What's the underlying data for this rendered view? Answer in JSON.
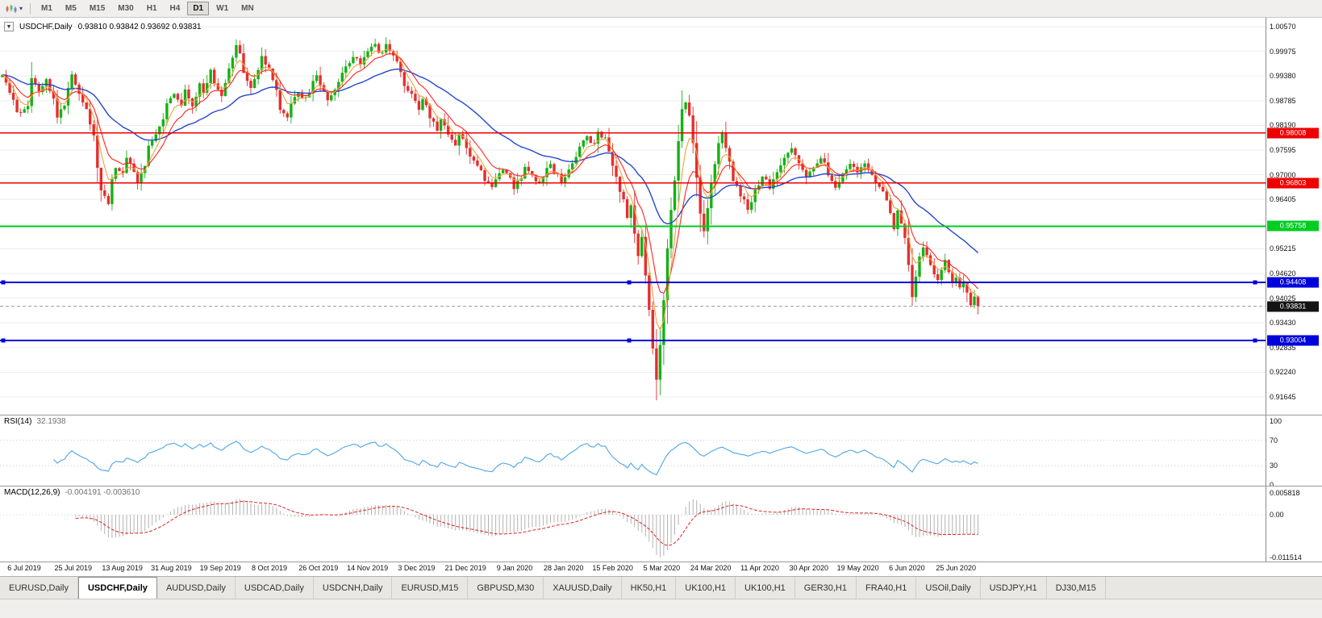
{
  "toolbar": {
    "timeframes": [
      "M1",
      "M5",
      "M15",
      "M30",
      "H1",
      "H4",
      "D1",
      "W1",
      "MN"
    ],
    "active_timeframe": "D1",
    "chart_menu_arrow": "▾"
  },
  "chart": {
    "title_symbol": "USDCHF,Daily",
    "title_ohlc": "0.93810 0.93842 0.93692 0.93831",
    "menu_arrow": "▼"
  },
  "indicators": {
    "rsi": {
      "label": "RSI(14)",
      "value": "32.1938"
    },
    "macd": {
      "label": "MACD(12,26,9)",
      "value": "-0.004191 -0.003610"
    }
  },
  "tabs": [
    {
      "label": "EURUSD,Daily",
      "active": false
    },
    {
      "label": "USDCHF,Daily",
      "active": true
    },
    {
      "label": "AUDUSD,Daily",
      "active": false
    },
    {
      "label": "USDCAD,Daily",
      "active": false
    },
    {
      "label": "USDCNH,Daily",
      "active": false
    },
    {
      "label": "EURUSD,M15",
      "active": false
    },
    {
      "label": "GBPUSD,M30",
      "active": false
    },
    {
      "label": "XAUUSD,Daily",
      "active": false
    },
    {
      "label": "HK50,H1",
      "active": false
    },
    {
      "label": "UK100,H1",
      "active": false
    },
    {
      "label": "UK100,H1",
      "active": false
    },
    {
      "label": "GER30,H1",
      "active": false
    },
    {
      "label": "FRA40,H1",
      "active": false
    },
    {
      "label": "USOil,Daily",
      "active": false
    },
    {
      "label": "USDJPY,H1",
      "active": false
    },
    {
      "label": "DJ30,M15",
      "active": false
    }
  ],
  "chart_data": {
    "type": "candlestick",
    "symbol": "USDCHF",
    "period": "Daily",
    "ohlc": {
      "open": "0.93810",
      "high": "0.93842",
      "low": "0.93692",
      "close": "0.93831"
    },
    "y_ticks": [
      "1.00570",
      "0.99975",
      "0.99380",
      "0.98785",
      "0.98190",
      "0.97595",
      "0.97000",
      "0.96405",
      "0.95810",
      "0.95215",
      "0.94620",
      "0.94025",
      "0.93430",
      "0.92835",
      "0.92240",
      "0.91645"
    ],
    "x_ticks": [
      "6 Jul 2019",
      "25 Jul 2019",
      "13 Aug 2019",
      "31 Aug 2019",
      "19 Sep 2019",
      "8 Oct 2019",
      "26 Oct 2019",
      "14 Nov 2019",
      "3 Dec 2019",
      "21 Dec 2019",
      "9 Jan 2020",
      "28 Jan 2020",
      "15 Feb 2020",
      "5 Mar 2020",
      "24 Mar 2020",
      "11 Apr 2020",
      "30 Apr 2020",
      "19 May 2020",
      "6 Jun 2020",
      "25 Jun 2020"
    ],
    "horizontal_lines": [
      {
        "price": 0.98008,
        "label": "0.98008",
        "color": "#ee0000",
        "width": 1.4,
        "selected": false
      },
      {
        "price": 0.96803,
        "label": "0.96803",
        "color": "#ee0000",
        "width": 1.4,
        "selected": false
      },
      {
        "price": 0.95758,
        "label": "0.95758",
        "color": "#00cc22",
        "width": 2,
        "selected": false
      },
      {
        "price": 0.94408,
        "label": "0.94408",
        "color": "#0000dd",
        "width": 2,
        "selected": true
      },
      {
        "price": 0.93004,
        "label": "0.93004",
        "color": "#0000dd",
        "width": 2,
        "selected": true
      }
    ],
    "current_price": {
      "value": 0.93831,
      "label": "0.93831",
      "color": "#141414"
    },
    "candle_colors": {
      "up": "#16b016",
      "down": "#e62e2e"
    },
    "moving_averages": [
      {
        "name": "ma-fast",
        "period": 5,
        "color": "#f2a23a"
      },
      {
        "name": "ma-medium",
        "period": 10,
        "color": "#ff2222"
      },
      {
        "name": "ma-slow",
        "period": 34,
        "color": "#2547cf"
      }
    ],
    "rsi": {
      "period": 14,
      "current": 32.1938,
      "levels": [
        "100",
        "70",
        "30",
        "0"
      ],
      "color": "#4da6e8"
    },
    "macd": {
      "fast": 12,
      "slow": 26,
      "signal": 9,
      "current_macd": "-0.004191",
      "current_signal": "-0.003610",
      "scale_labels": [
        "0.005818",
        "0.00",
        "-0.011514"
      ],
      "histogram_color": "#b2b2b2",
      "signal_color": "#dd2222"
    },
    "price_path_anchors": [
      [
        0,
        0.9935
      ],
      [
        3,
        0.988
      ],
      [
        4,
        0.9845
      ],
      [
        7,
        0.987
      ],
      [
        8,
        0.9935
      ],
      [
        10,
        0.9905
      ],
      [
        12,
        0.9935
      ],
      [
        14,
        0.988
      ],
      [
        15,
        0.984
      ],
      [
        17,
        0.987
      ],
      [
        19,
        0.994
      ],
      [
        21,
        0.99
      ],
      [
        23,
        0.986
      ],
      [
        25,
        0.979
      ],
      [
        26,
        0.972
      ],
      [
        27,
        0.966
      ],
      [
        29,
        0.9635
      ],
      [
        30,
        0.969
      ],
      [
        31,
        0.972
      ],
      [
        33,
        0.97
      ],
      [
        34,
        0.9745
      ],
      [
        36,
        0.971
      ],
      [
        37,
        0.968
      ],
      [
        39,
        0.972
      ],
      [
        40,
        0.977
      ],
      [
        42,
        0.98
      ],
      [
        44,
        0.984
      ],
      [
        45,
        0.9875
      ],
      [
        47,
        0.9895
      ],
      [
        49,
        0.987
      ],
      [
        50,
        0.99
      ],
      [
        52,
        0.986
      ],
      [
        54,
        0.992
      ],
      [
        55,
        0.9895
      ],
      [
        57,
        0.995
      ],
      [
        58,
        0.992
      ],
      [
        60,
        0.989
      ],
      [
        62,
        0.996
      ],
      [
        64,
        1.0015
      ],
      [
        65,
        0.999
      ],
      [
        66,
        0.994
      ],
      [
        68,
        0.9905
      ],
      [
        70,
        0.995
      ],
      [
        71,
        0.9985
      ],
      [
        73,
        0.995
      ],
      [
        75,
        0.9905
      ],
      [
        76,
        0.985
      ],
      [
        78,
        0.9835
      ],
      [
        79,
        0.987
      ],
      [
        81,
        0.99
      ],
      [
        83,
        0.988
      ],
      [
        85,
        0.992
      ],
      [
        86,
        0.9935
      ],
      [
        88,
        0.9905
      ],
      [
        89,
        0.988
      ],
      [
        91,
        0.991
      ],
      [
        93,
        0.994
      ],
      [
        94,
        0.996
      ],
      [
        96,
        0.999
      ],
      [
        98,
        0.9965
      ],
      [
        100,
        1.0
      ],
      [
        102,
        1.002
      ],
      [
        103,
        0.999
      ],
      [
        105,
        1.001
      ],
      [
        107,
        0.9985
      ],
      [
        109,
        0.995
      ],
      [
        110,
        0.992
      ],
      [
        112,
        0.989
      ],
      [
        114,
        0.986
      ],
      [
        115,
        0.9885
      ],
      [
        117,
        0.984
      ],
      [
        119,
        0.981
      ],
      [
        120,
        0.9835
      ],
      [
        122,
        0.98
      ],
      [
        124,
        0.9775
      ],
      [
        125,
        0.98
      ],
      [
        127,
        0.977
      ],
      [
        128,
        0.9745
      ],
      [
        130,
        0.972
      ],
      [
        132,
        0.969
      ],
      [
        134,
        0.9665
      ],
      [
        135,
        0.969
      ],
      [
        137,
        0.9715
      ],
      [
        139,
        0.9695
      ],
      [
        140,
        0.967
      ],
      [
        142,
        0.969
      ],
      [
        143,
        0.9715
      ],
      [
        145,
        0.97
      ],
      [
        147,
        0.968
      ],
      [
        148,
        0.97
      ],
      [
        150,
        0.972
      ],
      [
        152,
        0.97
      ],
      [
        153,
        0.968
      ],
      [
        155,
        0.9715
      ],
      [
        157,
        0.9745
      ],
      [
        158,
        0.977
      ],
      [
        160,
        0.979
      ],
      [
        162,
        0.9775
      ],
      [
        163,
        0.98
      ],
      [
        165,
        0.9785
      ],
      [
        166,
        0.975
      ],
      [
        167,
        0.972
      ],
      [
        168,
        0.969
      ],
      [
        169,
        0.9655
      ],
      [
        170,
        0.964
      ],
      [
        171,
        0.96
      ],
      [
        172,
        0.963
      ],
      [
        173,
        0.956
      ],
      [
        174,
        0.95
      ],
      [
        175,
        0.955
      ],
      [
        176,
        0.946
      ],
      [
        177,
        0.938
      ],
      [
        178,
        0.928
      ],
      [
        179,
        0.92
      ],
      [
        180,
        0.929
      ],
      [
        181,
        0.94
      ],
      [
        182,
        0.952
      ],
      [
        183,
        0.961
      ],
      [
        184,
        0.969
      ],
      [
        185,
        0.978
      ],
      [
        186,
        0.986
      ],
      [
        187,
        0.988
      ],
      [
        188,
        0.984
      ],
      [
        189,
        0.977
      ],
      [
        190,
        0.969
      ],
      [
        191,
        0.961
      ],
      [
        192,
        0.956
      ],
      [
        193,
        0.962
      ],
      [
        194,
        0.968
      ],
      [
        195,
        0.973
      ],
      [
        196,
        0.978
      ],
      [
        197,
        0.98
      ],
      [
        198,
        0.977
      ],
      [
        199,
        0.973
      ],
      [
        200,
        0.969
      ],
      [
        202,
        0.965
      ],
      [
        204,
        0.962
      ],
      [
        206,
        0.966
      ],
      [
        208,
        0.97
      ],
      [
        210,
        0.967
      ],
      [
        212,
        0.97
      ],
      [
        214,
        0.974
      ],
      [
        216,
        0.976
      ],
      [
        218,
        0.973
      ],
      [
        220,
        0.969
      ],
      [
        222,
        0.9715
      ],
      [
        224,
        0.9745
      ],
      [
        226,
        0.9705
      ],
      [
        228,
        0.9665
      ],
      [
        230,
        0.97
      ],
      [
        232,
        0.973
      ],
      [
        234,
        0.971
      ],
      [
        236,
        0.973
      ],
      [
        238,
        0.97
      ],
      [
        240,
        0.967
      ],
      [
        242,
        0.964
      ],
      [
        243,
        0.961
      ],
      [
        244,
        0.957
      ],
      [
        245,
        0.961
      ],
      [
        246,
        0.958
      ],
      [
        247,
        0.955
      ],
      [
        248,
        0.948
      ],
      [
        249,
        0.94
      ],
      [
        250,
        0.945
      ],
      [
        251,
        0.95
      ],
      [
        252,
        0.953
      ],
      [
        253,
        0.951
      ],
      [
        254,
        0.948
      ],
      [
        255,
        0.946
      ],
      [
        256,
        0.944
      ],
      [
        257,
        0.947
      ],
      [
        258,
        0.949
      ],
      [
        259,
        0.946
      ],
      [
        260,
        0.944
      ],
      [
        261,
        0.9455
      ],
      [
        262,
        0.943
      ],
      [
        263,
        0.944
      ],
      [
        264,
        0.941
      ],
      [
        265,
        0.9385
      ],
      [
        266,
        0.94
      ],
      [
        267,
        0.93831
      ]
    ]
  }
}
